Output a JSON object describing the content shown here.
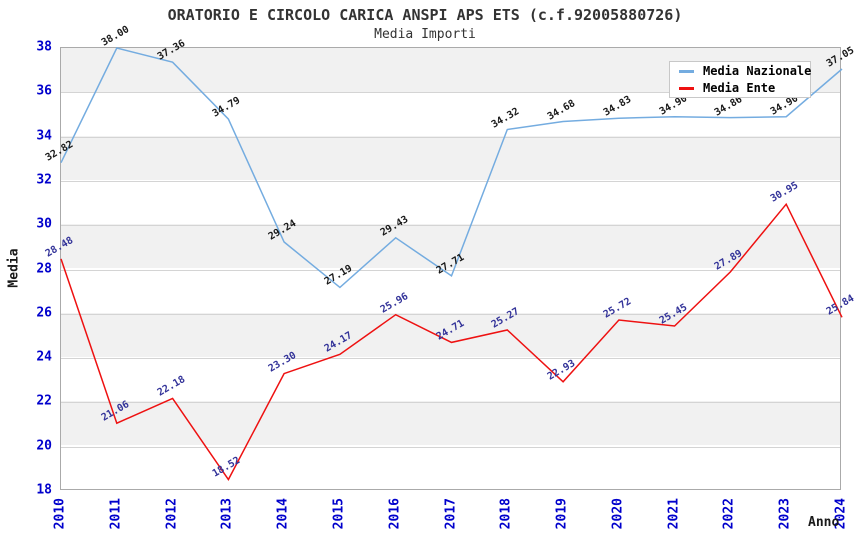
{
  "header": {
    "title": "ORATORIO E CIRCOLO CARICA ANSPI APS ETS (c.f.92005880726)",
    "subtitle": "Media Importi"
  },
  "legend": {
    "items": [
      {
        "label": "Media Nazionale",
        "color": "#74ace0"
      },
      {
        "label": "Media Ente",
        "color": "#ee1111"
      }
    ]
  },
  "chart_data": {
    "type": "line",
    "title": "ORATORIO E CIRCOLO CARICA ANSPI APS ETS (c.f.92005880726)",
    "subtitle": "Media Importi",
    "xlabel": "Anno",
    "ylabel": "Media",
    "x": [
      "2010",
      "2011",
      "2012",
      "2013",
      "2014",
      "2015",
      "2016",
      "2017",
      "2018",
      "2019",
      "2020",
      "2021",
      "2022",
      "2023",
      "2024"
    ],
    "series": [
      {
        "name": "Media Nazionale",
        "color": "#74ace0",
        "label_color": "#1a1a1a",
        "values": [
          32.82,
          38.0,
          37.36,
          34.79,
          29.24,
          27.19,
          29.43,
          27.71,
          34.32,
          34.68,
          34.83,
          34.9,
          34.86,
          34.9,
          37.05
        ],
        "labels": [
          "32.82",
          "38.00",
          "37.36",
          "34.79",
          "29.24",
          "27.19",
          "29.43",
          "27.71",
          "34.32",
          "34.68",
          "34.83",
          "34.90",
          "34.86",
          "34.90",
          "37.05"
        ]
      },
      {
        "name": "Media Ente",
        "color": "#ee1111",
        "label_color": "#333399",
        "values": [
          28.48,
          21.06,
          22.18,
          18.52,
          23.3,
          24.17,
          25.96,
          24.71,
          25.27,
          22.93,
          25.72,
          25.45,
          27.89,
          30.95,
          25.84
        ],
        "labels": [
          "28.48",
          "21.06",
          "22.18",
          "18.52",
          "23.30",
          "24.17",
          "25.96",
          "24.71",
          "25.27",
          "22.93",
          "25.72",
          "25.45",
          "27.89",
          "30.95",
          "25.84"
        ]
      }
    ],
    "ylim": [
      18,
      38
    ],
    "ytick_step": 2,
    "tick_color": "#0000cc",
    "grid": true,
    "alternating_bands": true,
    "legend_position": "top-right"
  }
}
